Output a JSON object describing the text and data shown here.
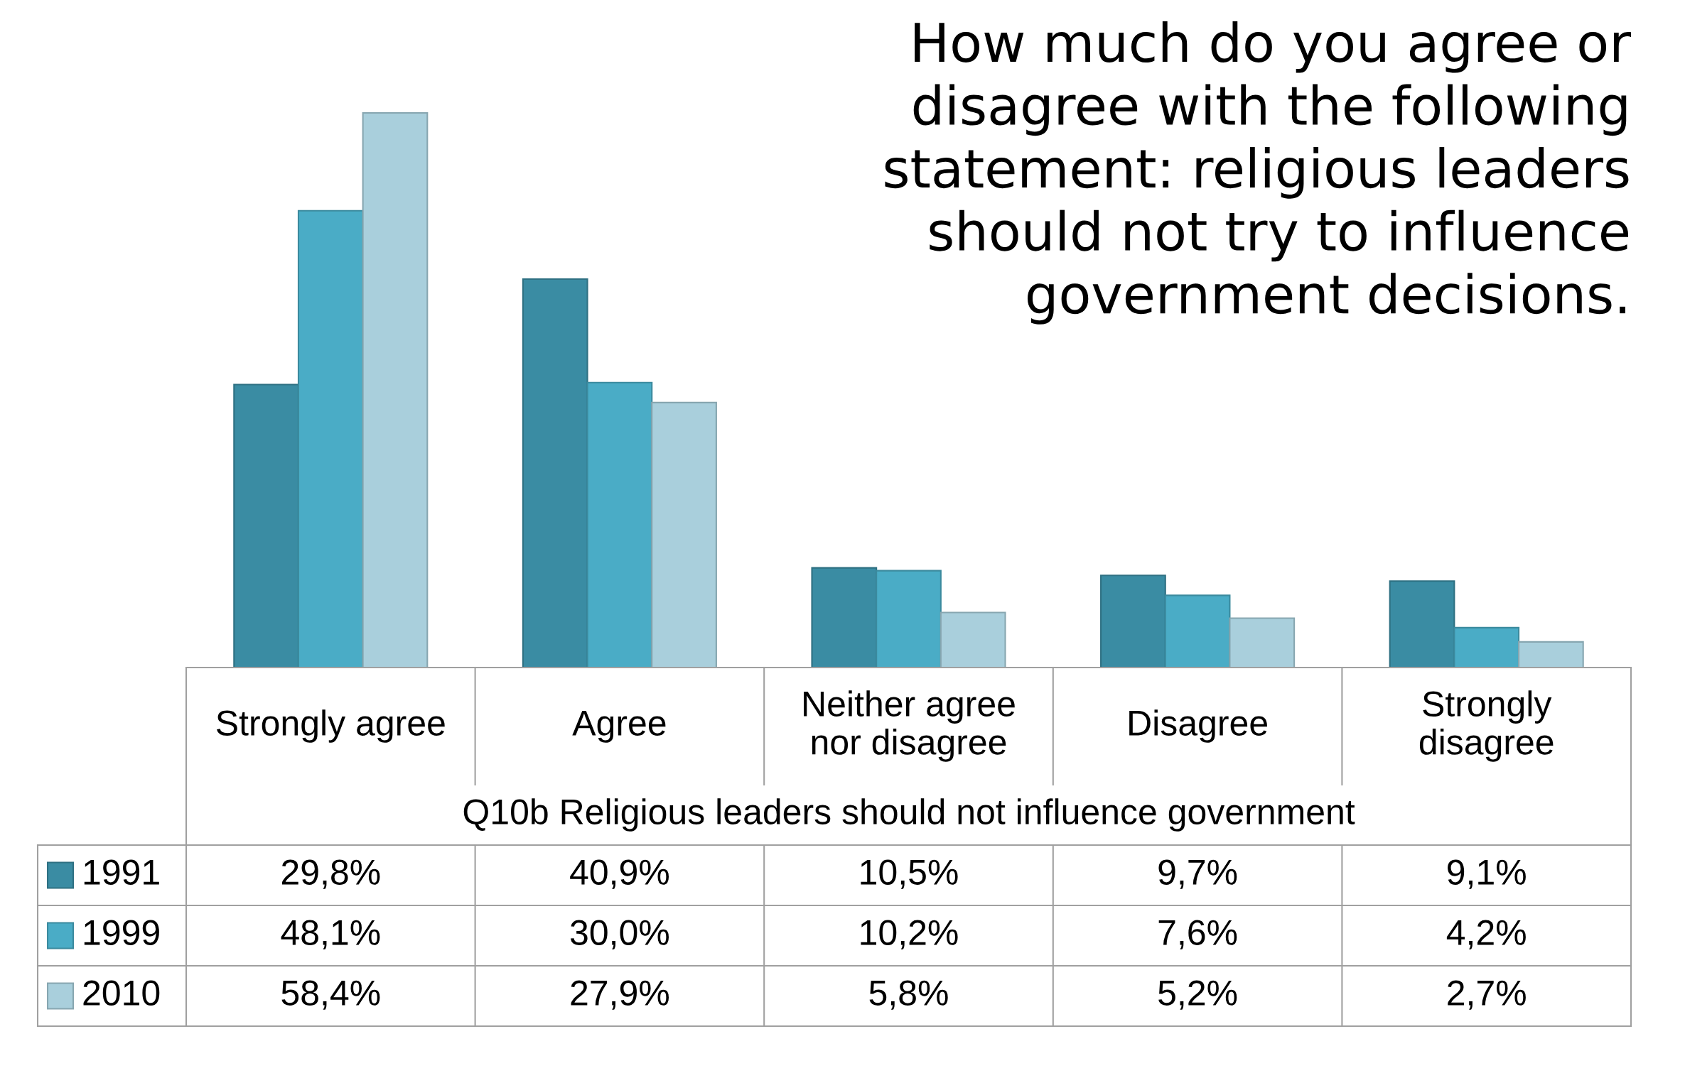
{
  "chart_data": {
    "type": "bar",
    "title": "How much do you agree or\ndisagree with the following\nstatement: religious leaders\nshould not try to influence\ngovernment decisions.",
    "categories": [
      "Strongly agree",
      "Agree",
      "Neither agree\nnor disagree",
      "Disagree",
      "Strongly\ndisagree"
    ],
    "series": [
      {
        "name": "1991",
        "color": "#3a8ca3",
        "values": [
          29.8,
          40.9,
          10.5,
          9.7,
          9.1
        ],
        "value_labels": [
          "29,8%",
          "40,9%",
          "10,5%",
          "9,7%",
          "9,1%"
        ]
      },
      {
        "name": "1999",
        "color": "#4aacc6",
        "values": [
          48.1,
          30.0,
          10.2,
          7.6,
          4.2
        ],
        "value_labels": [
          "48,1%",
          "30,0%",
          "10,2%",
          "7,6%",
          "4,2%"
        ]
      },
      {
        "name": "2010",
        "color": "#a9cfdc",
        "values": [
          58.4,
          27.9,
          5.8,
          5.2,
          2.7
        ],
        "value_labels": [
          "58,4%",
          "27,9%",
          "5,8%",
          "5,2%",
          "2,7%"
        ]
      }
    ],
    "annotations": [
      "Q10b Religious leaders should not influence government"
    ],
    "legend": "bottom left"
  }
}
